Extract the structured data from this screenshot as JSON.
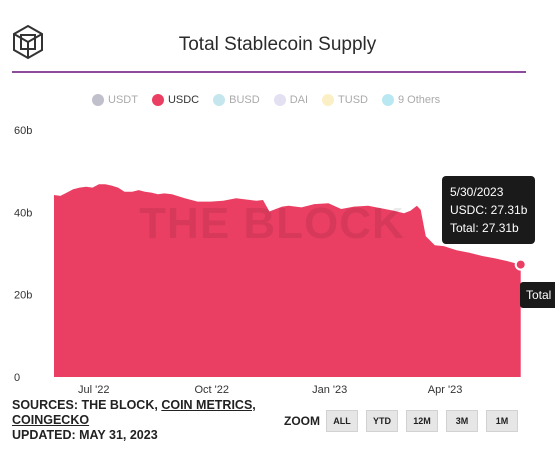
{
  "page": {
    "title": "Total Stablecoin Supply"
  },
  "legend": [
    {
      "label": "USDT",
      "color": "#c0bfcc",
      "active": false
    },
    {
      "label": "USDC",
      "color": "#ea3f63",
      "active": true
    },
    {
      "label": "BUSD",
      "color": "#c5e6ec",
      "active": false
    },
    {
      "label": "DAI",
      "color": "#e3e0f2",
      "active": false
    },
    {
      "label": "TUSD",
      "color": "#fbefc6",
      "active": false
    },
    {
      "label": "9 Others",
      "color": "#b9e8f2",
      "active": false
    }
  ],
  "watermark": "THE BLOCK",
  "tooltip": {
    "date": "5/30/2023",
    "line1": "USDC: 27.31b",
    "line2": "Total: 27.31b"
  },
  "tooltip2": {
    "text": "Total"
  },
  "sources": {
    "prefix": "SOURCES: THE BLOCK, ",
    "link1": "COIN METRICS,",
    "link2": "COINGECKO",
    "updated": "UPDATED: MAY 31, 2023"
  },
  "zoom": {
    "label": "ZOOM",
    "buttons": [
      "ALL",
      "YTD",
      "12M",
      "3M",
      "1M"
    ]
  },
  "colors": {
    "series": "#ea3f63",
    "accent_rule": "#8e4b9e"
  },
  "chart_data": {
    "type": "area",
    "title": "Total Stablecoin Supply",
    "xlabel": "",
    "ylabel": "",
    "ylim": [
      0,
      60
    ],
    "y_ticks": [
      "0",
      "20b",
      "40b",
      "60b"
    ],
    "y_tick_values": [
      0,
      20,
      40,
      60
    ],
    "x_ticks": [
      "Jul '22",
      "Oct '22",
      "Jan '23",
      "Apr '23"
    ],
    "x_tick_dates": [
      "2022-07-01",
      "2022-10-01",
      "2023-01-01",
      "2023-04-01"
    ],
    "x_range": [
      "2022-05-31",
      "2023-05-31"
    ],
    "grid": false,
    "legend_position": "top",
    "series": [
      {
        "name": "USDC",
        "color": "#ea3f63",
        "points": [
          [
            "2022-05-31",
            44.2
          ],
          [
            "2022-06-05",
            44.0
          ],
          [
            "2022-06-10",
            44.8
          ],
          [
            "2022-06-15",
            45.6
          ],
          [
            "2022-06-20",
            46.0
          ],
          [
            "2022-06-25",
            46.2
          ],
          [
            "2022-06-30",
            46.0
          ],
          [
            "2022-07-05",
            46.8
          ],
          [
            "2022-07-10",
            46.8
          ],
          [
            "2022-07-15",
            46.5
          ],
          [
            "2022-07-20",
            46.0
          ],
          [
            "2022-07-25",
            45.0
          ],
          [
            "2022-07-31",
            45.0
          ],
          [
            "2022-08-05",
            45.4
          ],
          [
            "2022-08-10",
            45.0
          ],
          [
            "2022-08-15",
            44.8
          ],
          [
            "2022-08-20",
            44.4
          ],
          [
            "2022-08-25",
            44.6
          ],
          [
            "2022-08-31",
            44.4
          ],
          [
            "2022-09-10",
            43.4
          ],
          [
            "2022-09-20",
            42.6
          ],
          [
            "2022-09-30",
            42.6
          ],
          [
            "2022-10-10",
            42.8
          ],
          [
            "2022-10-20",
            43.4
          ],
          [
            "2022-10-31",
            43.0
          ],
          [
            "2022-11-05",
            42.8
          ],
          [
            "2022-11-10",
            43.0
          ],
          [
            "2022-11-15",
            40.2
          ],
          [
            "2022-11-20",
            40.8
          ],
          [
            "2022-11-25",
            41.4
          ],
          [
            "2022-11-30",
            41.6
          ],
          [
            "2022-12-10",
            41.2
          ],
          [
            "2022-12-20",
            42.0
          ],
          [
            "2022-12-31",
            42.2
          ],
          [
            "2023-01-10",
            40.8
          ],
          [
            "2023-01-20",
            41.4
          ],
          [
            "2023-01-31",
            41.6
          ],
          [
            "2023-02-10",
            41.0
          ],
          [
            "2023-02-20",
            40.4
          ],
          [
            "2023-02-28",
            39.8
          ],
          [
            "2023-03-05",
            40.4
          ],
          [
            "2023-03-10",
            41.6
          ],
          [
            "2023-03-13",
            40.6
          ],
          [
            "2023-03-17",
            34.2
          ],
          [
            "2023-03-24",
            32.0
          ],
          [
            "2023-03-31",
            31.8
          ],
          [
            "2023-04-10",
            30.8
          ],
          [
            "2023-04-20",
            30.2
          ],
          [
            "2023-04-30",
            29.4
          ],
          [
            "2023-05-10",
            28.8
          ],
          [
            "2023-05-20",
            28.1
          ],
          [
            "2023-05-30",
            27.31
          ]
        ]
      }
    ],
    "highlight": {
      "date": "2023-05-30",
      "value": 27.31
    }
  }
}
